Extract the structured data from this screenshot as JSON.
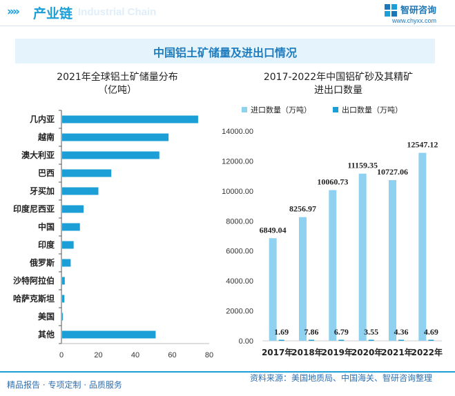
{
  "header": {
    "section_title": "产业链",
    "watermark_text": "Industrial Chain",
    "logo_name": "智研咨询",
    "logo_url": "www.chyxx.com",
    "chevrons": "»»"
  },
  "banner": {
    "title": "中国铝土矿储量及进出口情况"
  },
  "colors": {
    "bar": "#1b9fd6",
    "import": "#8fd1f1",
    "export": "#1b9fd6",
    "title": "#1f7dbf",
    "banner_bg": "#e5f4fc"
  },
  "left_chart": {
    "title_line1": "2021年全球铝土矿储量分布",
    "title_line2": "（亿吨）"
  },
  "right_chart": {
    "title_line1": "2017-2022年中国铝矿砂及其精矿",
    "title_line2": "进出口数量"
  },
  "footer": {
    "left": "精品报告 · 专项定制 · 品质服务",
    "right": "资料来源：美国地质局、中国海关、智研咨询整理"
  },
  "chart_data": [
    {
      "type": "bar",
      "orientation": "horizontal",
      "title": "2021年全球铝土矿储量分布（亿吨）",
      "categories": [
        "几内亚",
        "越南",
        "澳大利亚",
        "巴西",
        "牙买加",
        "印度尼西亚",
        "中国",
        "印度",
        "俄罗斯",
        "沙特阿拉伯",
        "哈萨克斯坦",
        "美国",
        "其他"
      ],
      "values": [
        74,
        58,
        53,
        27,
        20,
        12,
        10,
        6.6,
        5,
        1.8,
        1.6,
        0.2,
        51
      ],
      "xlim": [
        0,
        80
      ],
      "xticks": [
        0,
        20,
        40,
        60,
        80
      ],
      "grid": false
    },
    {
      "type": "bar",
      "title": "2017-2022年中国铝矿砂及其精矿进出口数量",
      "categories": [
        "2017年",
        "2018年",
        "2019年",
        "2020年",
        "2021年",
        "2022年"
      ],
      "series": [
        {
          "name": "进口数量（万吨）",
          "values": [
            6849.04,
            8256.97,
            10060.73,
            11159.35,
            10727.06,
            12547.12
          ],
          "labels": [
            "6849.04",
            "8256.97",
            "10060.73",
            "11159.35",
            "10727.06",
            "12547.12"
          ]
        },
        {
          "name": "出口数量（万吨）",
          "values": [
            1.69,
            7.86,
            6.79,
            3.55,
            4.36,
            4.69
          ],
          "labels": [
            "1.69",
            "7.86",
            "6.79",
            "3.55",
            "4.36",
            "4.69"
          ]
        }
      ],
      "ylim": [
        0,
        14000
      ],
      "yticks": [
        "0.00",
        "2000.00",
        "4000.00",
        "6000.00",
        "8000.00",
        "10000.00",
        "12000.00",
        "14000.00"
      ],
      "legend": "top",
      "grid": false
    }
  ]
}
